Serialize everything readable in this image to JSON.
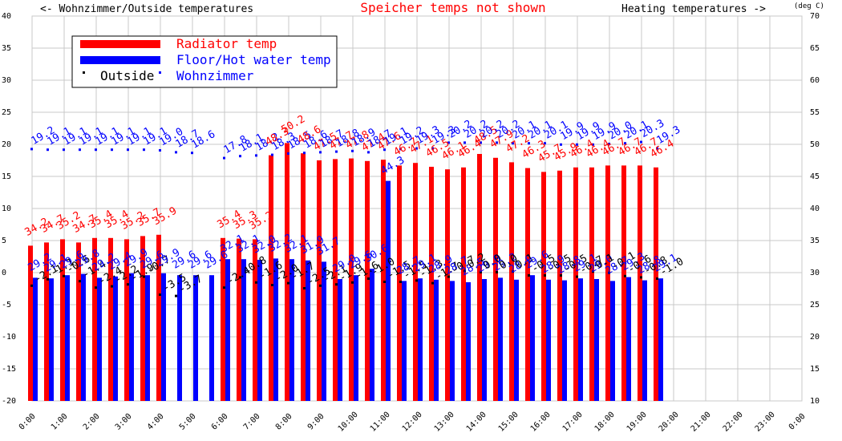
{
  "header": {
    "left_title": "<- Wohnzimmer/Outside temperatures",
    "center_title": "Speicher temps not shown",
    "right_title": "Heating temperatures ->",
    "unit_label": "(deg C)"
  },
  "colors": {
    "radiator": "#ff0000",
    "floor": "#0000ff",
    "outside": "#000000",
    "wohnzimmer": "#0000ff",
    "grid": "#c8c8c8"
  },
  "legend": {
    "radiator": "Radiator temp",
    "floor": "Floor/Hot water temp",
    "outside": "Outside",
    "wohnzimmer": "Wohnzimmer"
  },
  "chart_data": {
    "type": "bar",
    "title": "Speicher temps not shown",
    "left_axis": {
      "label": "Wohnzimmer/Outside temperatures",
      "range": [
        -20,
        40
      ],
      "ticks": [
        "40",
        "35",
        "30",
        "25",
        "20",
        "15",
        "10",
        "5",
        "0",
        "-5",
        "-10",
        "-15",
        "-20"
      ]
    },
    "right_axis": {
      "label": "Heating temperatures (deg C)",
      "range": [
        10,
        70
      ],
      "ticks": [
        "70",
        "65",
        "60",
        "55",
        "50",
        "45",
        "40",
        "35",
        "30",
        "25",
        "20",
        "15",
        "10"
      ]
    },
    "x_ticks": [
      "0:00",
      "1:00",
      "2:00",
      "3:00",
      "4:00",
      "5:00",
      "6:00",
      "7:00",
      "8:00",
      "9:00",
      "10:00",
      "11:00",
      "12:00",
      "13:00",
      "14:00",
      "15:00",
      "16:00",
      "17:00",
      "18:00",
      "19:00",
      "20:00",
      "21:00",
      "22:00",
      "23:00",
      "0:00"
    ],
    "time_slots": [
      "0:00",
      "0:30",
      "1:00",
      "1:30",
      "2:00",
      "2:30",
      "3:00",
      "3:30",
      "4:00",
      "4:30",
      "5:00",
      "5:30",
      "6:00",
      "6:30",
      "7:00",
      "7:30",
      "8:00",
      "8:30",
      "9:00",
      "9:30",
      "10:00",
      "10:30",
      "11:00",
      "11:30",
      "12:00",
      "12:30",
      "13:00",
      "13:30",
      "14:00",
      "14:30",
      "15:00",
      "15:30",
      "16:00",
      "16:30",
      "17:00",
      "17:30",
      "18:00",
      "18:30",
      "19:00",
      "19:30"
    ],
    "series": [
      {
        "name": "Radiator temp",
        "axis": "right",
        "values": [
          34.2,
          34.7,
          35.2,
          34.7,
          35.4,
          35.4,
          35.2,
          35.7,
          35.9,
          null,
          null,
          null,
          35.4,
          35.3,
          35.2,
          48.3,
          50.2,
          48.6,
          47.5,
          47.7,
          47.8,
          47.4,
          47.6,
          46.7,
          47.1,
          46.5,
          46.1,
          46.4,
          48.5,
          47.9,
          47.2,
          46.3,
          45.7,
          45.9,
          46.4,
          46.4,
          46.7,
          46.7,
          46.7,
          46.4
        ]
      },
      {
        "name": "Floor/Hot water temp",
        "axis": "right",
        "values": [
          29.2,
          29.1,
          29.6,
          29.8,
          29.2,
          29.4,
          29.9,
          29.6,
          29.9,
          29.6,
          29.6,
          29.6,
          32.1,
          32.1,
          32.0,
          32.2,
          32.1,
          31.9,
          31.7,
          29.0,
          29.6,
          30.6,
          44.3,
          28.7,
          29.1,
          28.9,
          28.7,
          28.5,
          29.0,
          29.2,
          28.9,
          29.6,
          28.9,
          28.8,
          29.1,
          29.0,
          28.7,
          29.3,
          28.8,
          29.1
        ]
      },
      {
        "name": "Outside",
        "axis": "left",
        "values": [
          -2.1,
          -1.1,
          -0.6,
          -1.4,
          -2.4,
          -2.2,
          -1.9,
          -0.7,
          -3.5,
          -3.7,
          null,
          null,
          -2.4,
          -0.8,
          -1.6,
          -2.0,
          -1.7,
          -2.5,
          -2.1,
          -1.9,
          -1.6,
          -1.0,
          -1.5,
          -1.5,
          -1.3,
          -1.7,
          -0.7,
          0.2,
          0.0,
          0.0,
          0.1,
          -0.5,
          -0.5,
          -0.5,
          -0.7,
          0.1,
          -0.1,
          -0.6,
          -0.8,
          -1.0
        ]
      },
      {
        "name": "Wohnzimmer",
        "axis": "left",
        "values": [
          19.2,
          19.1,
          19.1,
          19.1,
          19.1,
          19.1,
          19.1,
          19.1,
          19.0,
          18.7,
          18.6,
          null,
          17.8,
          18.1,
          18.2,
          18.3,
          18.5,
          18.6,
          18.7,
          18.8,
          18.9,
          18.7,
          19.1,
          19.2,
          19.3,
          19.3,
          20.2,
          20.2,
          20.2,
          20.2,
          20.1,
          20.1,
          20.1,
          19.9,
          19.9,
          19.9,
          20.0,
          20.1,
          20.3,
          19.3
        ]
      }
    ]
  }
}
